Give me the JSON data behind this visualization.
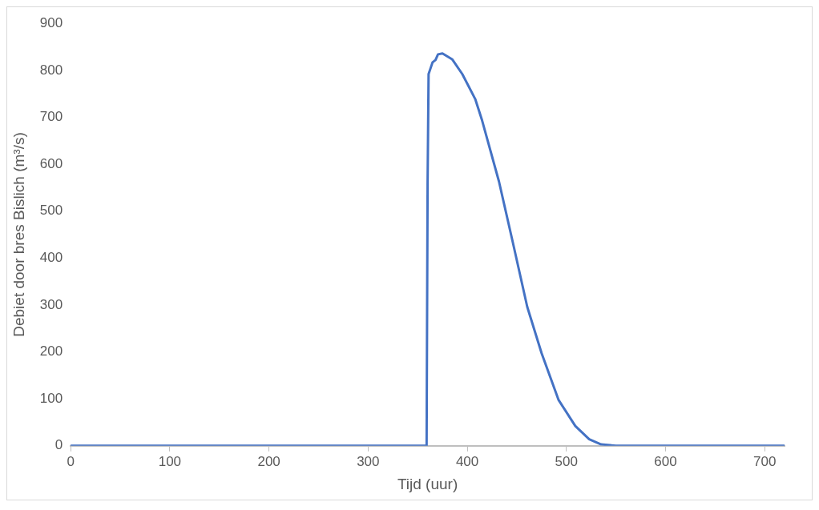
{
  "chart_data": {
    "type": "line",
    "xlabel": "Tijd (uur)",
    "ylabel": "Debiet door bres Bislich (m³/s)",
    "xlim": [
      0,
      720
    ],
    "xticks": [
      0,
      100,
      200,
      300,
      400,
      500,
      600,
      700
    ],
    "ylim": [
      0,
      900
    ],
    "yticks": [
      0,
      100,
      200,
      300,
      400,
      500,
      600,
      700,
      800,
      900
    ],
    "grid": false,
    "legend": false,
    "marker": "none",
    "line_style": "solid",
    "series": [
      {
        "color": "#4472c4",
        "x": [
          0,
          359,
          360,
          361,
          365,
          368,
          370.5,
          375,
          385,
          395,
          408,
          415,
          432,
          446,
          460.5,
          475,
          492,
          509,
          523,
          535,
          550,
          720
        ],
        "values": [
          0,
          0,
          556,
          792,
          817,
          822,
          834,
          836,
          823,
          792,
          739,
          693,
          563,
          433,
          296,
          197,
          98,
          42,
          14,
          3,
          0,
          0
        ]
      }
    ]
  }
}
